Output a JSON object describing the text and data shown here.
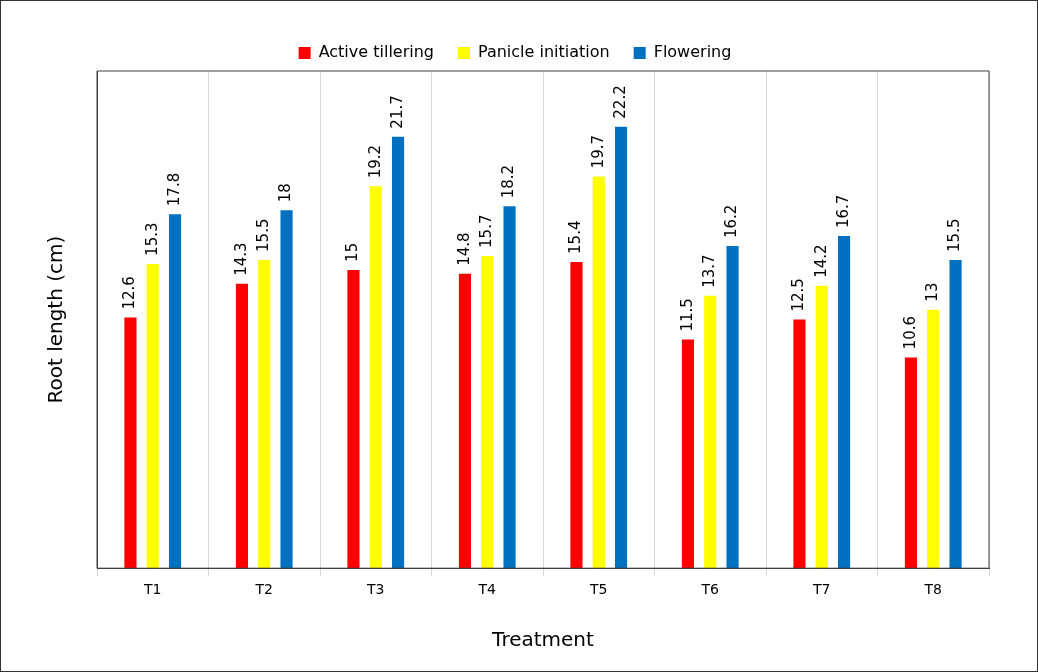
{
  "chart_data": {
    "type": "bar",
    "xlabel": "Treatment",
    "ylabel": "Root length (cm)",
    "categories": [
      "T1",
      "T2",
      "T3",
      "T4",
      "T5",
      "T6",
      "T7",
      "T8"
    ],
    "series": [
      {
        "name": "Active tillering",
        "color": "#ff0000",
        "values": [
          12.6,
          14.3,
          15,
          14.8,
          15.4,
          11.5,
          12.5,
          10.6
        ]
      },
      {
        "name": "Panicle initiation",
        "color": "#ffff00",
        "values": [
          15.3,
          15.5,
          19.2,
          15.7,
          19.7,
          13.7,
          14.2,
          13
        ]
      },
      {
        "name": "Flowering",
        "color": "#0070c0",
        "values": [
          17.8,
          18,
          21.7,
          18.2,
          22.2,
          16.2,
          16.7,
          15.5
        ]
      }
    ],
    "ylim": [
      0,
      25
    ],
    "tick_labels": "x",
    "data_labels": true,
    "grid": "x",
    "legend": "top"
  }
}
